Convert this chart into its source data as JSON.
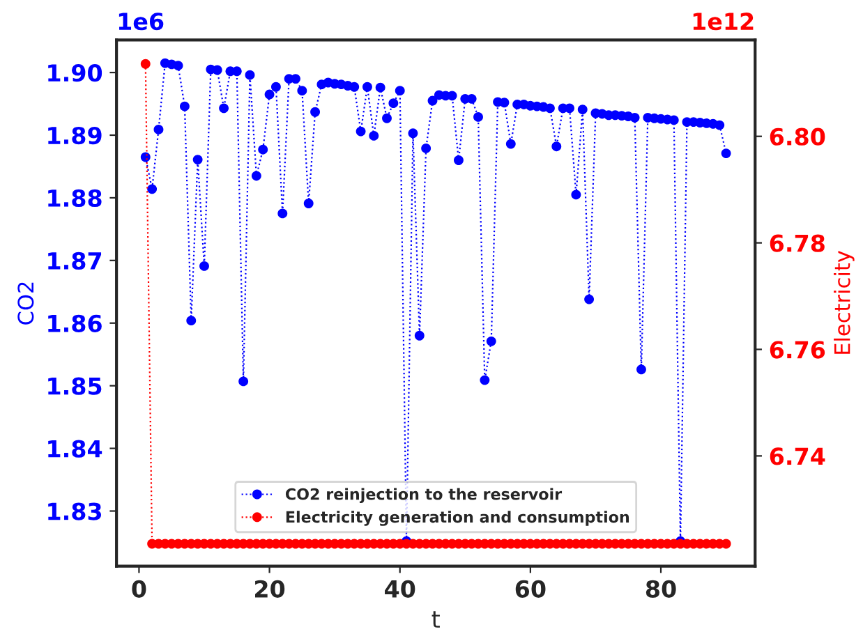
{
  "chart_data": {
    "type": "line",
    "xlabel": "t",
    "ylabel": "CO2",
    "y2label": "Electricity",
    "x": [
      1,
      2,
      3,
      4,
      5,
      6,
      7,
      8,
      9,
      10,
      11,
      12,
      13,
      14,
      15,
      16,
      17,
      18,
      19,
      20,
      21,
      22,
      23,
      24,
      25,
      26,
      27,
      28,
      29,
      30,
      31,
      32,
      33,
      34,
      35,
      36,
      37,
      38,
      39,
      40,
      41,
      42,
      43,
      44,
      45,
      46,
      47,
      48,
      49,
      50,
      51,
      52,
      53,
      54,
      55,
      56,
      57,
      58,
      59,
      60,
      61,
      62,
      63,
      64,
      65,
      66,
      67,
      68,
      69,
      70,
      71,
      72,
      73,
      74,
      75,
      76,
      77,
      78,
      79,
      80,
      81,
      82,
      83,
      84,
      85,
      86,
      87,
      88,
      89,
      90
    ],
    "series": [
      {
        "name": "CO2 reinjection to the reservoir",
        "color": "#0000ff",
        "values": [
          1.8865,
          1.8814,
          1.8909,
          1.9015,
          1.9013,
          1.9011,
          1.8946,
          1.8604,
          1.8861,
          1.8691,
          1.9005,
          1.9004,
          1.8943,
          1.9002,
          1.9002,
          1.8507,
          1.8996,
          1.8835,
          1.8877,
          1.8965,
          1.8977,
          1.8775,
          1.899,
          1.899,
          1.8971,
          1.8791,
          1.8937,
          1.8981,
          1.8984,
          1.8982,
          1.8981,
          1.8979,
          1.8977,
          1.8906,
          1.8977,
          1.8899,
          1.8976,
          1.8927,
          1.8951,
          1.8971,
          1.8252,
          1.8903,
          1.858,
          1.8879,
          1.8955,
          1.8964,
          1.8963,
          1.8963,
          1.886,
          1.8958,
          1.8958,
          1.8929,
          1.8509,
          1.8571,
          1.8953,
          1.8952,
          1.8886,
          1.8949,
          1.8949,
          1.8947,
          1.8946,
          1.8945,
          1.8943,
          1.8882,
          1.8943,
          1.8943,
          1.8805,
          1.8941,
          1.8638,
          1.8935,
          1.8934,
          1.8932,
          1.8932,
          1.8931,
          1.893,
          1.8928,
          1.8526,
          1.8928,
          1.8927,
          1.8926,
          1.8925,
          1.8924,
          1.8252,
          1.8921,
          1.8921,
          1.892,
          1.8919,
          1.8918,
          1.8916,
          1.8871
        ]
      },
      {
        "name": "Electricity generation and consumption",
        "color": "#ff0000",
        "axis": "y2",
        "values": [
          6.8136,
          6.7235,
          6.7235,
          6.7235,
          6.7235,
          6.7235,
          6.7235,
          6.7235,
          6.7235,
          6.7235,
          6.7235,
          6.7235,
          6.7235,
          6.7235,
          6.7235,
          6.7235,
          6.7235,
          6.7235,
          6.7235,
          6.7235,
          6.7235,
          6.7235,
          6.7235,
          6.7235,
          6.7235,
          6.7235,
          6.7235,
          6.7235,
          6.7235,
          6.7235,
          6.7235,
          6.7235,
          6.7235,
          6.7235,
          6.7235,
          6.7235,
          6.7235,
          6.7235,
          6.7235,
          6.7235,
          6.7235,
          6.7235,
          6.7235,
          6.7235,
          6.7235,
          6.7235,
          6.7235,
          6.7235,
          6.7235,
          6.7235,
          6.7235,
          6.7235,
          6.7235,
          6.7235,
          6.7235,
          6.7235,
          6.7235,
          6.7235,
          6.7235,
          6.7235,
          6.7235,
          6.7235,
          6.7235,
          6.7235,
          6.7235,
          6.7235,
          6.7235,
          6.7235,
          6.7235,
          6.7235,
          6.7235,
          6.7235,
          6.7235,
          6.7235,
          6.7235,
          6.7235,
          6.7235,
          6.7235,
          6.7235,
          6.7235,
          6.7235,
          6.7235,
          6.7235,
          6.7235,
          6.7235,
          6.7235,
          6.7235,
          6.7235,
          6.7235,
          6.7235
        ]
      }
    ],
    "xlim": [
      -3.45,
      94.45
    ],
    "xticks": [
      0,
      20,
      40,
      60,
      80
    ],
    "ylim": [
      1.8212,
      1.9052
    ],
    "yticks": [
      1.83,
      1.84,
      1.85,
      1.86,
      1.87,
      1.88,
      1.89,
      {
        "value": 1.9,
        "label": "1.90"
      }
    ],
    "y2lim": [
      6.7193,
      6.8181
    ],
    "y2ticks": [
      6.74,
      6.76,
      6.78,
      {
        "value": 6.8,
        "label": "6.80"
      }
    ],
    "annotations": [
      "1e6",
      "1e12"
    ],
    "marker": "circle",
    "line_style": "dotted",
    "legend": "bottom",
    "grid": false
  }
}
